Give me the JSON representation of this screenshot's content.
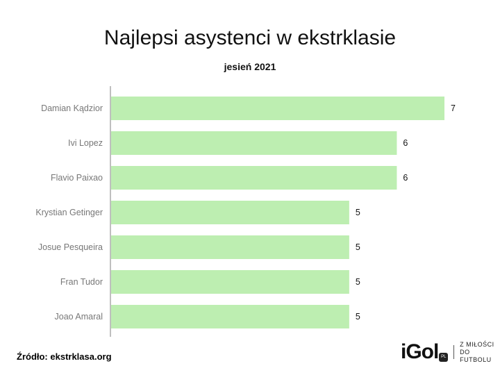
{
  "chart_data": {
    "type": "bar",
    "orientation": "horizontal",
    "title": "Najlepsi asystenci w ekstrklasie",
    "subtitle": "jesień 2021",
    "categories": [
      "Damian Kądzior",
      "Ivi Lopez",
      "Flavio Paixao",
      "Krystian Getinger",
      "Josue Pesqueira",
      "Fran Tudor",
      "Joao Amaral"
    ],
    "values": [
      7,
      6,
      6,
      5,
      5,
      5,
      5
    ],
    "xlim": [
      0,
      7
    ],
    "grid": false,
    "bar_color": "#bdeeb1"
  },
  "footer": {
    "source": "Źródło: ekstrklasa.org",
    "logo_text": "iGol",
    "logo_badge": "PL",
    "logo_tagline_1": "Z MIŁOŚCI",
    "logo_tagline_2": "DO FUTBOLU"
  }
}
